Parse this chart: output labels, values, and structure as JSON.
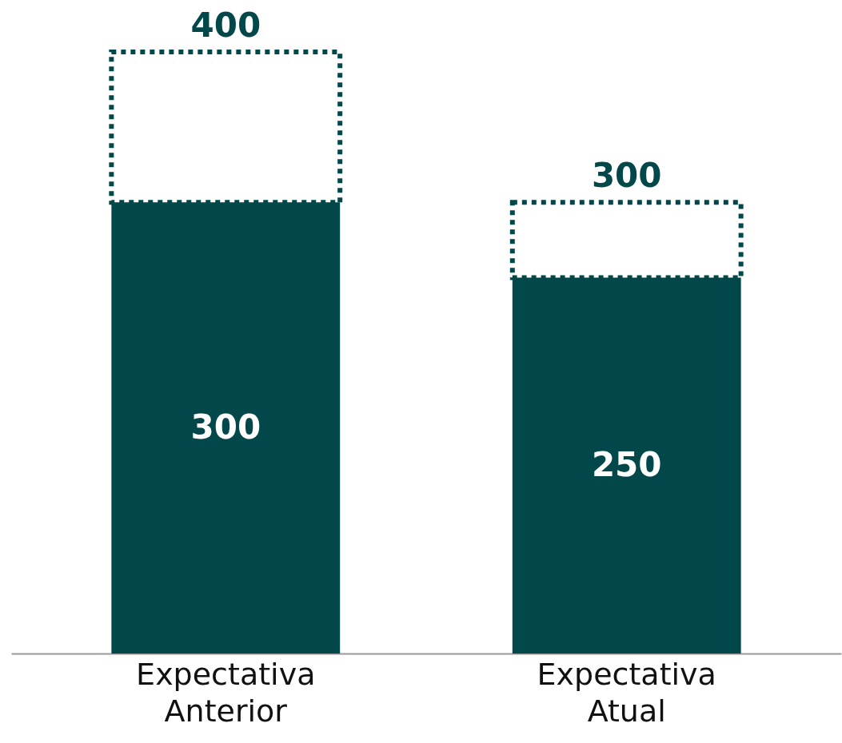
{
  "chart_data": {
    "type": "bar",
    "stacked": true,
    "categories": [
      "Expectativa Anterior",
      "Expectativa Atual"
    ],
    "series": [
      {
        "color": "#02474a",
        "values": [
          300,
          250
        ],
        "value_labels": [
          "300",
          "250"
        ]
      },
      {
        "color": "#02474a",
        "values": [
          100,
          50
        ],
        "line_style": "dotted"
      }
    ],
    "totals": [
      "400",
      "300"
    ]
  }
}
